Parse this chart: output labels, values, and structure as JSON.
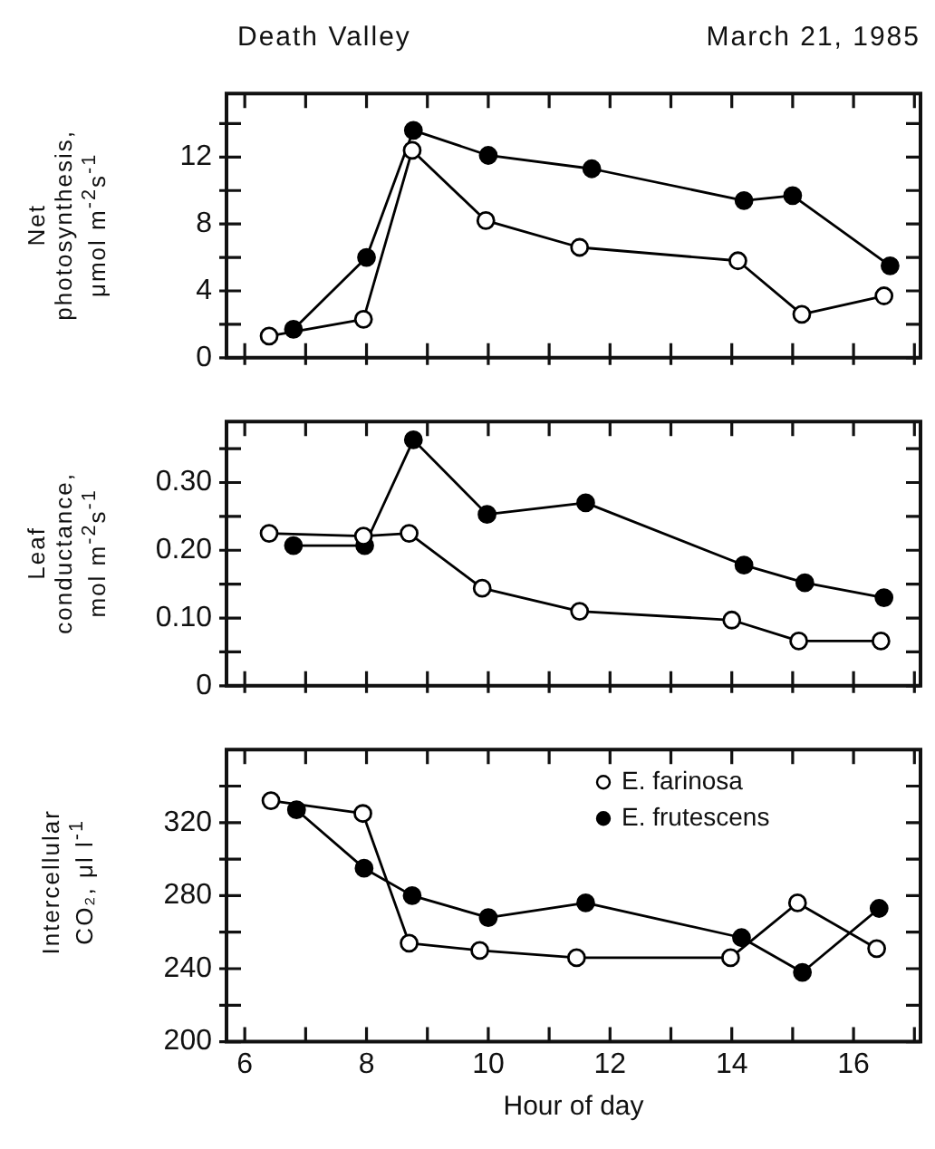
{
  "chart_data": [
    {
      "type": "line",
      "title": "Death Valley",
      "subtitle": "March 21, 1985",
      "ylabel": "Net photosynthesis, μmol m$^{-2}$s$^{-1}$",
      "xlim": [
        5.7,
        17.1
      ],
      "xticks": [
        {
          "value": 6,
          "label": null
        },
        {
          "value": 7,
          "label": null
        },
        {
          "value": 8,
          "label": null
        },
        {
          "value": 9,
          "label": null
        },
        {
          "value": 10,
          "label": null
        },
        {
          "value": 11,
          "label": null
        },
        {
          "value": 12,
          "label": null
        },
        {
          "value": 13,
          "label": null
        },
        {
          "value": 14,
          "label": null
        },
        {
          "value": 15,
          "label": null
        },
        {
          "value": 16,
          "label": null
        },
        {
          "value": 17,
          "label": null
        }
      ],
      "ylim": [
        0,
        15.8
      ],
      "yticks": [
        0,
        {
          "value": 2,
          "label": null
        },
        4,
        {
          "value": 6,
          "label": null
        },
        8,
        {
          "value": 10,
          "label": null
        },
        12,
        {
          "value": 14,
          "label": null
        }
      ],
      "tick_labels": "y",
      "marker": "circle",
      "line_style": "solid",
      "series": [
        {
          "color": "#ffffff",
          "x": [
            6.4,
            7.95,
            8.75,
            9.96,
            11.5,
            14.1,
            15.15,
            16.5
          ],
          "values": [
            1.3,
            2.3,
            12.4,
            8.2,
            6.6,
            5.8,
            2.6,
            3.7
          ]
        },
        {
          "color": "#000000",
          "x": [
            6.8,
            8.0,
            8.77,
            10.0,
            11.7,
            14.2,
            15.0,
            16.6
          ],
          "values": [
            1.7,
            6.0,
            13.6,
            12.1,
            11.3,
            9.4,
            9.7,
            5.5
          ]
        }
      ]
    },
    {
      "type": "line",
      "ylabel": "Leaf conductance, mol m$^{-2}$s$^{-1}$",
      "xlim": [
        5.7,
        17.1
      ],
      "xticks": [
        {
          "value": 6,
          "label": null
        },
        {
          "value": 7,
          "label": null
        },
        {
          "value": 8,
          "label": null
        },
        {
          "value": 9,
          "label": null
        },
        {
          "value": 10,
          "label": null
        },
        {
          "value": 11,
          "label": null
        },
        {
          "value": 12,
          "label": null
        },
        {
          "value": 13,
          "label": null
        },
        {
          "value": 14,
          "label": null
        },
        {
          "value": 15,
          "label": null
        },
        {
          "value": 16,
          "label": null
        },
        {
          "value": 17,
          "label": null
        }
      ],
      "ylim": [
        0,
        0.39
      ],
      "yticks": [
        0,
        {
          "value": 0.05,
          "label": null
        },
        {
          "value": 0.1,
          "label": "0.10"
        },
        {
          "value": 0.15,
          "label": null
        },
        {
          "value": 0.2,
          "label": "0.20"
        },
        {
          "value": 0.25,
          "label": null
        },
        {
          "value": 0.3,
          "label": "0.30"
        },
        {
          "value": 0.35,
          "label": null
        }
      ],
      "tick_labels": "y",
      "marker": "circle",
      "line_style": "solid",
      "series": [
        {
          "color": "#ffffff",
          "x": [
            6.4,
            7.95,
            8.7,
            9.9,
            11.5,
            14.0,
            15.1,
            16.45
          ],
          "values": [
            0.225,
            0.221,
            0.225,
            0.144,
            0.11,
            0.097,
            0.066,
            0.066
          ]
        },
        {
          "color": "#000000",
          "x": [
            6.8,
            7.97,
            8.77,
            9.98,
            11.6,
            14.2,
            15.2,
            16.5
          ],
          "values": [
            0.207,
            0.207,
            0.363,
            0.253,
            0.27,
            0.178,
            0.152,
            0.13
          ]
        }
      ]
    },
    {
      "type": "line",
      "ylabel": "Intercellular CO₂, μl l$^{-1}$",
      "xlabel": "Hour of day",
      "xlim": [
        5.7,
        17.1
      ],
      "xticks": [
        6,
        {
          "value": 7,
          "label": null
        },
        8,
        {
          "value": 9,
          "label": null
        },
        10,
        {
          "value": 11,
          "label": null
        },
        12,
        {
          "value": 13,
          "label": null
        },
        14,
        {
          "value": 15,
          "label": null
        },
        16,
        {
          "value": 17,
          "label": null
        }
      ],
      "ylim": [
        200,
        360
      ],
      "yticks": [
        200,
        {
          "value": 220,
          "label": null
        },
        240,
        {
          "value": 260,
          "label": null
        },
        280,
        {
          "value": 300,
          "label": null
        },
        320,
        {
          "value": 340,
          "label": null
        }
      ],
      "legend": "top right",
      "marker": "circle",
      "line_style": "solid",
      "series": [
        {
          "name": "E. farinosa",
          "color": "#ffffff",
          "x": [
            6.43,
            7.94,
            8.7,
            9.86,
            11.45,
            13.98,
            15.08,
            16.38
          ],
          "values": [
            332,
            325,
            254,
            250,
            246,
            246,
            276,
            251
          ]
        },
        {
          "name": "E. frutescens",
          "color": "#000000",
          "x": [
            6.85,
            7.96,
            8.75,
            10.0,
            11.6,
            14.16,
            15.16,
            16.42
          ],
          "values": [
            327,
            295,
            280,
            268,
            276,
            257,
            238,
            273
          ]
        }
      ]
    }
  ]
}
